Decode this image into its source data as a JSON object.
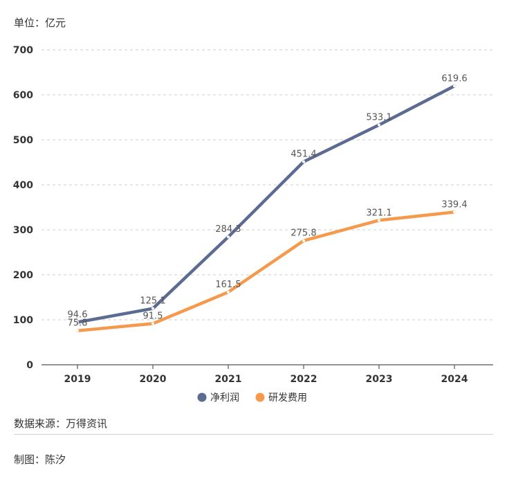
{
  "unit_label": "单位：亿元",
  "source": "数据来源：万得资讯",
  "credit": "制图：陈汐",
  "chart_data": {
    "type": "line",
    "title": "",
    "xlabel": "",
    "ylabel": "",
    "categories": [
      "2019",
      "2020",
      "2021",
      "2022",
      "2023",
      "2024"
    ],
    "ylim": [
      0,
      700
    ],
    "yticks": [
      0,
      100,
      200,
      300,
      400,
      500,
      600,
      700
    ],
    "grid": true,
    "legend_position": "bottom",
    "series": [
      {
        "name": "净利润",
        "color": "#5b6b92",
        "values": [
          94.6,
          125.1,
          284.3,
          451.4,
          533.1,
          619.6
        ],
        "labels": [
          "94.6",
          "125.1",
          "284.3",
          "451.4",
          "533.1",
          "619.6"
        ]
      },
      {
        "name": "研发费用",
        "color": "#f59a4d",
        "values": [
          75.8,
          91.5,
          161.5,
          275.8,
          321.1,
          339.4
        ],
        "labels": [
          "75.8",
          "91.5",
          "161.5",
          "275.8",
          "321.1",
          "339.4"
        ]
      }
    ]
  }
}
